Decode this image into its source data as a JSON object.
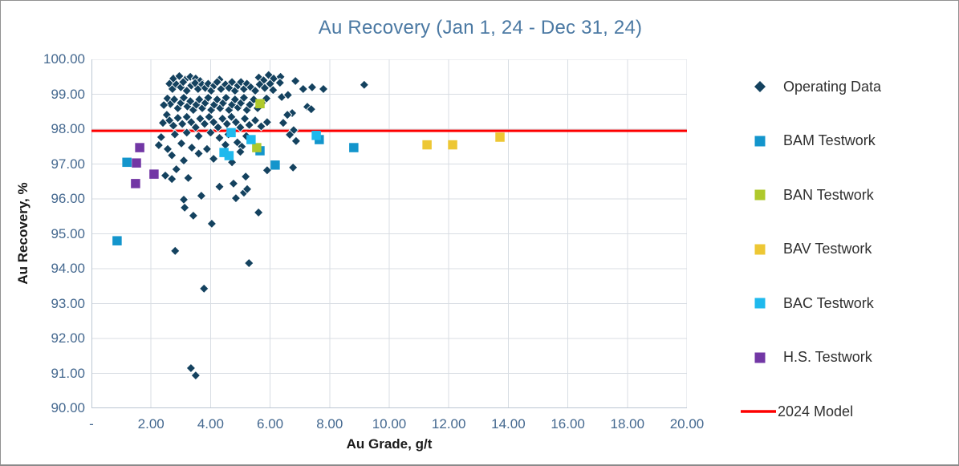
{
  "chart_data": {
    "type": "scatter",
    "title": "Au Recovery (Jan 1, 24 - Dec 31, 24)",
    "xlabel": "Au Grade, g/t",
    "ylabel": "Au  Recovery, %",
    "xlim": [
      0,
      20
    ],
    "ylim": [
      90,
      100
    ],
    "grid": true,
    "legend_position": "right",
    "x_ticks": [
      {
        "value": 0,
        "label": "-"
      },
      {
        "value": 2,
        "label": "2.00"
      },
      {
        "value": 4,
        "label": "4.00"
      },
      {
        "value": 6,
        "label": "6.00"
      },
      {
        "value": 8,
        "label": "8.00"
      },
      {
        "value": 10,
        "label": "10.00"
      },
      {
        "value": 12,
        "label": "12.00"
      },
      {
        "value": 14,
        "label": "14.00"
      },
      {
        "value": 16,
        "label": "16.00"
      },
      {
        "value": 18,
        "label": "18.00"
      },
      {
        "value": 20,
        "label": "20.00"
      }
    ],
    "y_ticks": [
      {
        "value": 100,
        "label": "100.00"
      },
      {
        "value": 99,
        "label": "99.00"
      },
      {
        "value": 98,
        "label": "98.00"
      },
      {
        "value": 97,
        "label": "97.00"
      },
      {
        "value": 96,
        "label": "96.00"
      },
      {
        "value": 95,
        "label": "95.00"
      },
      {
        "value": 94,
        "label": "94.00"
      },
      {
        "value": 93,
        "label": "93.00"
      },
      {
        "value": 92,
        "label": "92.00"
      },
      {
        "value": 91,
        "label": "91.00"
      },
      {
        "value": 90,
        "label": "90.00"
      }
    ],
    "series": [
      {
        "name": "Operating Data",
        "marker": "diamond",
        "color": "#14425f",
        "points": [
          [
            2.75,
            99.45
          ],
          [
            2.95,
            99.52
          ],
          [
            3.15,
            99.42
          ],
          [
            3.32,
            99.5
          ],
          [
            3.5,
            99.45
          ],
          [
            3.65,
            99.38
          ],
          [
            4.3,
            99.42
          ],
          [
            5.62,
            99.48
          ],
          [
            5.78,
            99.4
          ],
          [
            5.95,
            99.55
          ],
          [
            6.12,
            99.45
          ],
          [
            6.35,
            99.5
          ],
          [
            2.62,
            99.3
          ],
          [
            2.72,
            99.15
          ],
          [
            2.85,
            99.28
          ],
          [
            3.0,
            99.2
          ],
          [
            3.08,
            99.35
          ],
          [
            3.2,
            99.1
          ],
          [
            3.35,
            99.25
          ],
          [
            3.48,
            99.32
          ],
          [
            3.58,
            99.15
          ],
          [
            3.72,
            99.28
          ],
          [
            3.82,
            99.18
          ],
          [
            3.92,
            99.3
          ],
          [
            4.02,
            99.1
          ],
          [
            4.12,
            99.25
          ],
          [
            4.22,
            99.35
          ],
          [
            4.35,
            99.15
          ],
          [
            4.5,
            99.28
          ],
          [
            4.62,
            99.18
          ],
          [
            4.72,
            99.35
          ],
          [
            4.82,
            99.1
          ],
          [
            4.92,
            99.25
          ],
          [
            5.02,
            99.35
          ],
          [
            5.12,
            99.15
          ],
          [
            5.22,
            99.3
          ],
          [
            5.35,
            99.2
          ],
          [
            5.5,
            99.1
          ],
          [
            5.65,
            99.28
          ],
          [
            5.82,
            99.18
          ],
          [
            6.0,
            99.3
          ],
          [
            6.1,
            99.12
          ],
          [
            6.33,
            99.33
          ],
          [
            6.85,
            99.38
          ],
          [
            7.11,
            99.15
          ],
          [
            7.41,
            99.2
          ],
          [
            7.79,
            99.15
          ],
          [
            9.16,
            99.27
          ],
          [
            2.55,
            98.88
          ],
          [
            2.65,
            98.72
          ],
          [
            2.78,
            98.85
          ],
          [
            2.9,
            98.6
          ],
          [
            3.0,
            98.75
          ],
          [
            3.1,
            98.9
          ],
          [
            3.22,
            98.65
          ],
          [
            3.32,
            98.8
          ],
          [
            3.42,
            98.55
          ],
          [
            3.52,
            98.7
          ],
          [
            3.62,
            98.85
          ],
          [
            3.72,
            98.6
          ],
          [
            3.82,
            98.75
          ],
          [
            3.92,
            98.9
          ],
          [
            4.02,
            98.55
          ],
          [
            4.12,
            98.7
          ],
          [
            4.22,
            98.85
          ],
          [
            4.32,
            98.6
          ],
          [
            4.42,
            98.75
          ],
          [
            4.52,
            98.9
          ],
          [
            4.62,
            98.55
          ],
          [
            4.72,
            98.7
          ],
          [
            4.82,
            98.85
          ],
          [
            4.92,
            98.62
          ],
          [
            5.02,
            98.75
          ],
          [
            5.12,
            98.9
          ],
          [
            5.22,
            98.55
          ],
          [
            5.32,
            98.7
          ],
          [
            5.45,
            98.85
          ],
          [
            5.58,
            98.6
          ],
          [
            5.72,
            98.75
          ],
          [
            5.88,
            98.88
          ],
          [
            6.39,
            98.92
          ],
          [
            6.6,
            98.98
          ],
          [
            7.25,
            98.64
          ],
          [
            7.38,
            98.57
          ],
          [
            6.74,
            98.46
          ],
          [
            6.58,
            98.41
          ],
          [
            2.43,
            98.69
          ],
          [
            2.53,
            98.41
          ],
          [
            2.4,
            98.18
          ],
          [
            2.62,
            98.25
          ],
          [
            2.75,
            98.1
          ],
          [
            2.9,
            98.32
          ],
          [
            3.05,
            98.15
          ],
          [
            3.2,
            98.35
          ],
          [
            3.35,
            98.2
          ],
          [
            3.5,
            98.05
          ],
          [
            3.65,
            98.3
          ],
          [
            3.8,
            98.15
          ],
          [
            3.95,
            98.35
          ],
          [
            4.1,
            98.2
          ],
          [
            4.25,
            98.05
          ],
          [
            4.4,
            98.3
          ],
          [
            4.55,
            98.15
          ],
          [
            4.7,
            98.35
          ],
          [
            4.85,
            98.2
          ],
          [
            5.0,
            98.05
          ],
          [
            5.15,
            98.3
          ],
          [
            5.3,
            98.12
          ],
          [
            5.5,
            98.25
          ],
          [
            5.7,
            98.08
          ],
          [
            5.9,
            98.2
          ],
          [
            6.44,
            98.18
          ],
          [
            6.79,
            97.97
          ],
          [
            2.26,
            97.54
          ],
          [
            2.34,
            97.77
          ],
          [
            2.56,
            97.43
          ],
          [
            2.8,
            97.85
          ],
          [
            3.02,
            97.59
          ],
          [
            3.2,
            97.9
          ],
          [
            3.37,
            97.47
          ],
          [
            3.6,
            97.8
          ],
          [
            3.88,
            97.43
          ],
          [
            4.0,
            97.9
          ],
          [
            4.3,
            97.75
          ],
          [
            4.6,
            97.85
          ],
          [
            4.9,
            97.62
          ],
          [
            5.2,
            97.8
          ],
          [
            6.66,
            97.84
          ],
          [
            6.87,
            97.66
          ],
          [
            4.5,
            97.55
          ],
          [
            5.05,
            97.5
          ],
          [
            2.7,
            97.25
          ],
          [
            3.1,
            97.1
          ],
          [
            3.6,
            97.3
          ],
          [
            4.1,
            97.15
          ],
          [
            4.72,
            97.05
          ],
          [
            5.0,
            97.35
          ],
          [
            2.48,
            96.67
          ],
          [
            2.7,
            96.57
          ],
          [
            2.85,
            96.85
          ],
          [
            3.25,
            96.6
          ],
          [
            5.18,
            96.64
          ],
          [
            5.9,
            96.82
          ],
          [
            6.77,
            96.9
          ],
          [
            3.69,
            96.09
          ],
          [
            4.77,
            96.44
          ],
          [
            4.85,
            96.02
          ],
          [
            5.12,
            96.18
          ],
          [
            5.23,
            96.28
          ],
          [
            4.3,
            96.35
          ],
          [
            3.1,
            95.98
          ],
          [
            3.13,
            95.75
          ],
          [
            3.42,
            95.52
          ],
          [
            4.04,
            95.29
          ],
          [
            5.61,
            95.61
          ],
          [
            2.81,
            94.51
          ],
          [
            5.29,
            94.16
          ],
          [
            3.78,
            93.43
          ],
          [
            3.34,
            91.15
          ],
          [
            3.5,
            90.94
          ]
        ]
      },
      {
        "name": "BAM Testwork",
        "marker": "square",
        "color": "#1395cc",
        "points": [
          [
            0.86,
            94.8
          ],
          [
            1.19,
            97.05
          ],
          [
            5.66,
            97.38
          ],
          [
            6.17,
            96.97
          ],
          [
            7.65,
            97.7
          ],
          [
            8.81,
            97.47
          ]
        ]
      },
      {
        "name": "BAN Testwork",
        "marker": "square",
        "color": "#afc92c",
        "points": [
          [
            5.66,
            98.73
          ],
          [
            5.55,
            97.47
          ]
        ]
      },
      {
        "name": "BAV Testwork",
        "marker": "square",
        "color": "#edc734",
        "points": [
          [
            11.27,
            97.55
          ],
          [
            12.13,
            97.55
          ],
          [
            13.72,
            97.77
          ]
        ]
      },
      {
        "name": "BAC Testwork",
        "marker": "square",
        "color": "#1fb9ed",
        "points": [
          [
            4.69,
            97.9
          ],
          [
            5.36,
            97.7
          ],
          [
            4.45,
            97.33
          ],
          [
            4.62,
            97.24
          ],
          [
            7.55,
            97.82
          ]
        ]
      },
      {
        "name": "H.S. Testwork",
        "marker": "square",
        "color": "#7237a5",
        "points": [
          [
            1.62,
            97.47
          ],
          [
            1.51,
            97.03
          ],
          [
            2.1,
            96.71
          ],
          [
            1.48,
            96.44
          ]
        ]
      },
      {
        "name": "2024 Model",
        "marker": "line",
        "color": "#fe0000",
        "line_y": 97.95
      }
    ]
  },
  "styles": {
    "title_color": "#4b79a3",
    "tick_color": "#44688f",
    "axis_title_color": "#1a1a1a",
    "gridline_color": "#d8dde3",
    "axis_line_color": "#bcc7d3",
    "background": "#ffffff",
    "border_color": "#909090"
  }
}
